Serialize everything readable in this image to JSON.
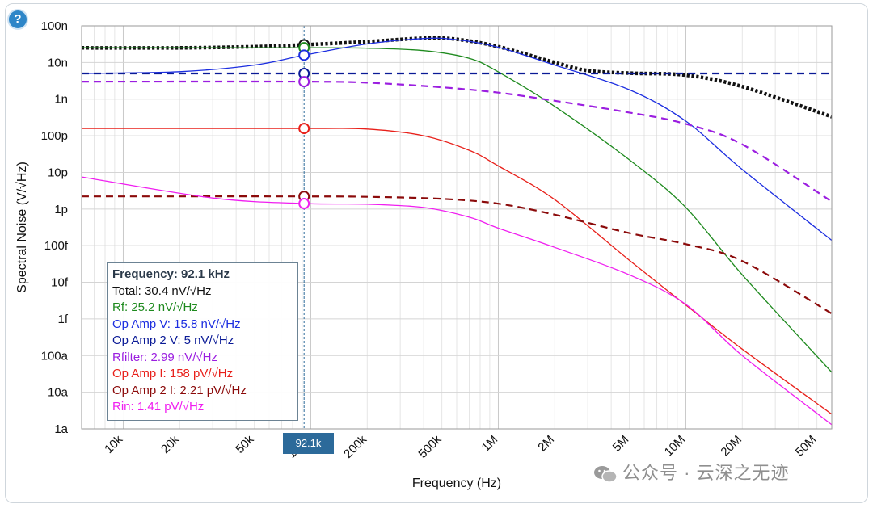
{
  "help": {
    "icon": "question-icon",
    "label": "?"
  },
  "chart_data": {
    "type": "line",
    "title": "",
    "xlabel": "Frequency (Hz)",
    "ylabel": "Spectral Noise (V/√Hz)",
    "x_scale": "log",
    "y_scale": "log",
    "xlim": [
      6000,
      60000000
    ],
    "ylim": [
      1e-18,
      1e-07
    ],
    "grid": true,
    "x_tick_labels": [
      {
        "value": 10000,
        "label": "10k"
      },
      {
        "value": 20000,
        "label": "20k"
      },
      {
        "value": 50000,
        "label": "50k"
      },
      {
        "value": 100000,
        "label": "100k"
      },
      {
        "value": 200000,
        "label": "200k"
      },
      {
        "value": 500000,
        "label": "500k"
      },
      {
        "value": 1000000,
        "label": "1M"
      },
      {
        "value": 2000000,
        "label": "2M"
      },
      {
        "value": 5000000,
        "label": "5M"
      },
      {
        "value": 10000000,
        "label": "10M"
      },
      {
        "value": 20000000,
        "label": "20M"
      },
      {
        "value": 50000000,
        "label": "50M"
      }
    ],
    "y_tick_labels": [
      {
        "value": 1e-07,
        "label": "100n"
      },
      {
        "value": 1e-08,
        "label": "10n"
      },
      {
        "value": 1e-09,
        "label": "1n"
      },
      {
        "value": 1e-10,
        "label": "100p"
      },
      {
        "value": 1e-11,
        "label": "10p"
      },
      {
        "value": 1e-12,
        "label": "1p"
      },
      {
        "value": 1e-13,
        "label": "100f"
      },
      {
        "value": 1e-14,
        "label": "10f"
      },
      {
        "value": 1e-15,
        "label": "1f"
      },
      {
        "value": 1e-16,
        "label": "100a"
      },
      {
        "value": 1e-17,
        "label": "10a"
      },
      {
        "value": 1e-18,
        "label": "1a"
      }
    ],
    "series": [
      {
        "name": "Total",
        "color": "#111111",
        "style": "dotted",
        "width": 4.5,
        "points": [
          [
            6000,
            2.5e-08
          ],
          [
            20000,
            2.5e-08
          ],
          [
            50000,
            2.7e-08
          ],
          [
            92100,
            3.04e-08
          ],
          [
            200000,
            3.7e-08
          ],
          [
            400000,
            4.6e-08
          ],
          [
            600000,
            4.3e-08
          ],
          [
            1000000,
            2.7e-08
          ],
          [
            2000000,
            1e-08
          ],
          [
            3000000,
            6e-09
          ],
          [
            5000000,
            5.1e-09
          ],
          [
            10000000,
            4.5e-09
          ],
          [
            20000000,
            2.2e-09
          ],
          [
            60000000,
            3.3e-10
          ]
        ]
      },
      {
        "name": "Rf",
        "color": "#1e8a1e",
        "style": "solid",
        "width": 1.3,
        "points": [
          [
            6000,
            2.52e-08
          ],
          [
            92100,
            2.52e-08
          ],
          [
            200000,
            2.45e-08
          ],
          [
            400000,
            2.1e-08
          ],
          [
            700000,
            1.3e-08
          ],
          [
            1000000,
            5.5e-09
          ],
          [
            2000000,
            6.3e-10
          ],
          [
            5000000,
            2.2e-11
          ],
          [
            10000000,
            1.1e-12
          ],
          [
            20000000,
            1.6e-14
          ],
          [
            60000000,
            3.5e-17
          ]
        ]
      },
      {
        "name": "Op Amp V",
        "color": "#1c2ee0",
        "style": "solid",
        "width": 1.3,
        "points": [
          [
            6000,
            5e-09
          ],
          [
            20000,
            5.6e-09
          ],
          [
            50000,
            8.5e-09
          ],
          [
            92100,
            1.58e-08
          ],
          [
            200000,
            3.2e-08
          ],
          [
            400000,
            4.5e-08
          ],
          [
            600000,
            4.2e-08
          ],
          [
            1000000,
            2.6e-08
          ],
          [
            2000000,
            8.5e-09
          ],
          [
            5000000,
            1.8e-09
          ],
          [
            10000000,
            2.5e-10
          ],
          [
            20000000,
            1.2e-11
          ],
          [
            60000000,
            1.4e-13
          ]
        ]
      },
      {
        "name": "Op Amp 2 V",
        "color": "#0a1a96",
        "style": "dashed",
        "width": 2.2,
        "points": [
          [
            6000,
            5e-09
          ],
          [
            60000000,
            5e-09
          ]
        ]
      },
      {
        "name": "Rfilter",
        "color": "#9b1ee0",
        "style": "dashed",
        "width": 2.2,
        "points": [
          [
            6000,
            2.99e-09
          ],
          [
            92100,
            2.99e-09
          ],
          [
            200000,
            2.8e-09
          ],
          [
            500000,
            2.1e-09
          ],
          [
            1000000,
            1.5e-09
          ],
          [
            2000000,
            9e-10
          ],
          [
            5000000,
            4.3e-10
          ],
          [
            10000000,
            2.1e-10
          ],
          [
            20000000,
            5.8e-11
          ],
          [
            60000000,
            1.6e-12
          ]
        ]
      },
      {
        "name": "Op Amp I",
        "color": "#e8201a",
        "style": "solid",
        "width": 1.3,
        "points": [
          [
            6000,
            1.58e-10
          ],
          [
            92100,
            1.58e-10
          ],
          [
            200000,
            1.52e-10
          ],
          [
            400000,
            1e-10
          ],
          [
            700000,
            4e-11
          ],
          [
            1000000,
            1.5e-11
          ],
          [
            2000000,
            1.8e-12
          ],
          [
            5000000,
            4e-14
          ],
          [
            10000000,
            2.4e-15
          ],
          [
            20000000,
            1.5e-16
          ],
          [
            60000000,
            2.5e-18
          ]
        ]
      },
      {
        "name": "Op Amp 2 I",
        "color": "#8b0a0a",
        "style": "dashed",
        "width": 2.2,
        "points": [
          [
            6000,
            2.21e-12
          ],
          [
            92100,
            2.21e-12
          ],
          [
            200000,
            2.15e-12
          ],
          [
            500000,
            1.9e-12
          ],
          [
            1000000,
            1.4e-12
          ],
          [
            2000000,
            7e-13
          ],
          [
            5000000,
            2.2e-13
          ],
          [
            10000000,
            1.1e-13
          ],
          [
            20000000,
            3.8e-14
          ],
          [
            60000000,
            1.4e-15
          ]
        ]
      },
      {
        "name": "Rin",
        "color": "#f01ef0",
        "style": "solid",
        "width": 1.3,
        "points": [
          [
            6000,
            7.5e-12
          ],
          [
            30000,
            2e-12
          ],
          [
            92100,
            1.41e-12
          ],
          [
            200000,
            1.35e-12
          ],
          [
            400000,
            1.1e-12
          ],
          [
            700000,
            6e-13
          ],
          [
            1000000,
            3e-13
          ],
          [
            2000000,
            9e-14
          ],
          [
            5000000,
            1.6e-14
          ],
          [
            10000000,
            2.5e-15
          ],
          [
            20000000,
            1e-16
          ],
          [
            60000000,
            1.3e-18
          ]
        ]
      }
    ],
    "cursor": {
      "frequency": 92100,
      "label": "92.1k",
      "markers": [
        {
          "series": "Total",
          "value": 3.04e-08,
          "color": "#111111"
        },
        {
          "series": "Rf",
          "value": 2.52e-08,
          "color": "#1e8a1e"
        },
        {
          "series": "Op Amp V",
          "value": 1.58e-08,
          "color": "#1c2ee0"
        },
        {
          "series": "Op Amp 2 V",
          "value": 5e-09,
          "color": "#0a1a96"
        },
        {
          "series": "Rfilter",
          "value": 2.99e-09,
          "color": "#9b1ee0"
        },
        {
          "series": "Op Amp I",
          "value": 1.58e-10,
          "color": "#e8201a"
        },
        {
          "series": "Op Amp 2 I",
          "value": 2.21e-12,
          "color": "#8b0a0a"
        },
        {
          "series": "Rin",
          "value": 1.41e-12,
          "color": "#f01ef0"
        }
      ]
    }
  },
  "readout": {
    "title": "Frequency: 92.1 kHz",
    "rows": [
      {
        "text": "Total: 30.4 nV/√Hz",
        "color": "#111111"
      },
      {
        "text": "Rf: 25.2 nV/√Hz",
        "color": "#1e8a1e"
      },
      {
        "text": "Op Amp V: 15.8 nV/√Hz",
        "color": "#1c2ee0"
      },
      {
        "text": "Op Amp 2 V: 5 nV/√Hz",
        "color": "#0a1a96"
      },
      {
        "text": "Rfilter: 2.99 nV/√Hz",
        "color": "#9b1ee0"
      },
      {
        "text": "Op Amp I: 158 pV/√Hz",
        "color": "#e8201a"
      },
      {
        "text": "Op Amp 2 I: 2.21 pV/√Hz",
        "color": "#8b0a0a"
      },
      {
        "text": "Rin: 1.41 pV/√Hz",
        "color": "#f01ef0"
      }
    ]
  },
  "watermark": {
    "text": "公众号 · 云深之无迹",
    "icon": "wechat-icon"
  }
}
